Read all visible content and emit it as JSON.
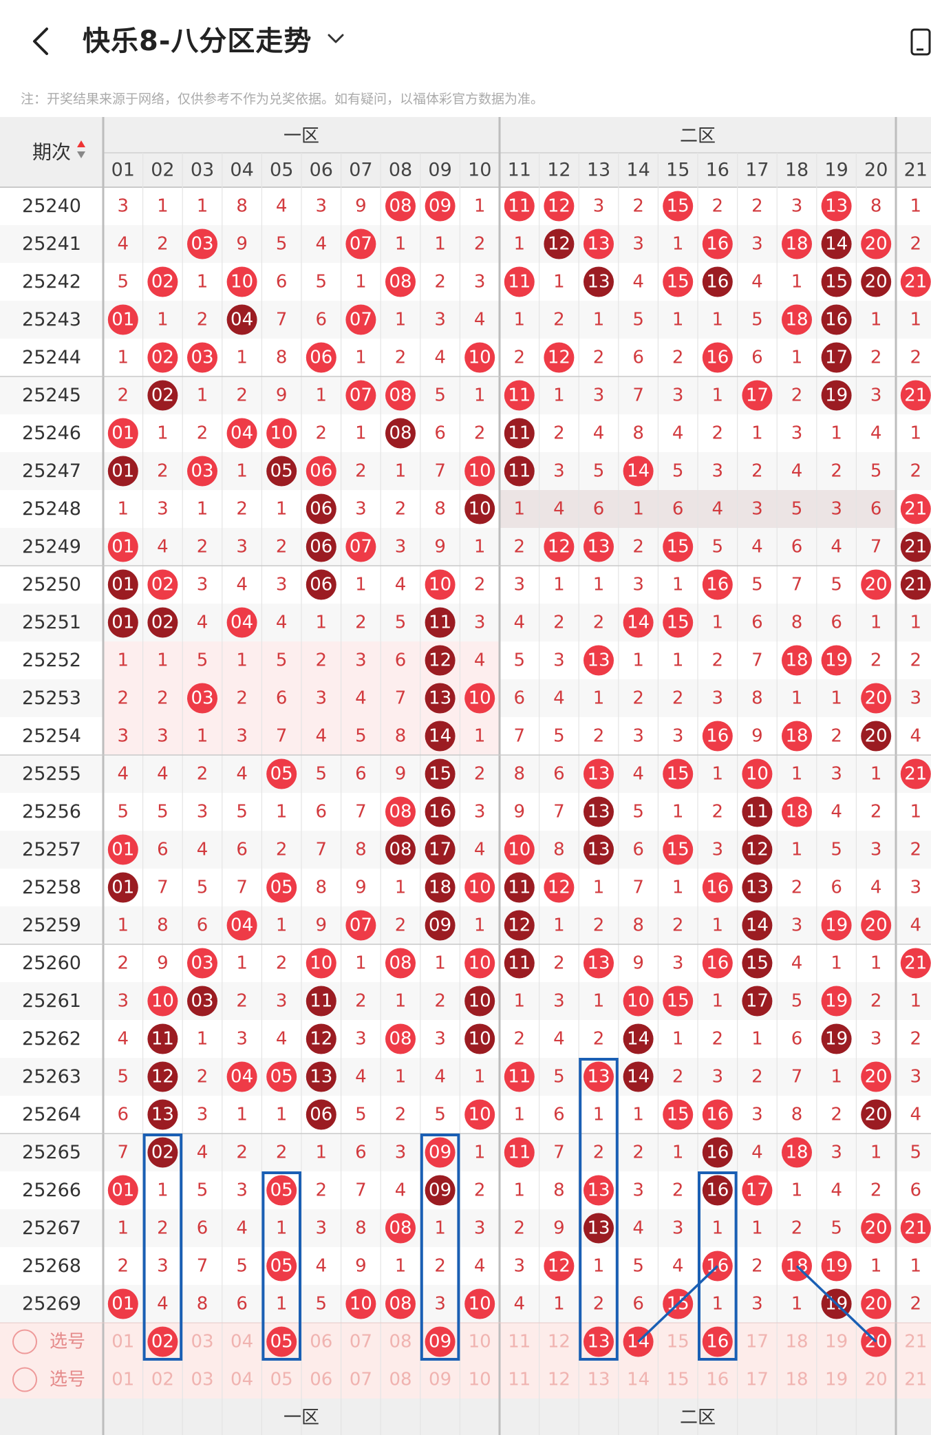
{
  "header": {
    "title": "快乐8-八分区走势",
    "back_icon": "chevron-left-icon",
    "dropdown_icon": "chevron-down-icon",
    "right_icon": "device-icon"
  },
  "notice": "注：开奖结果来源于网络，仅供参考不作为兑奖依据。如有疑问，以福体彩官方数据为准。",
  "table": {
    "period_label": "期次",
    "sort_icon": "sort-updown-icon",
    "zone1_label": "一区",
    "zone2_label": "二区",
    "columns": [
      "01",
      "02",
      "03",
      "04",
      "05",
      "06",
      "07",
      "08",
      "09",
      "10",
      "11",
      "12",
      "13",
      "14",
      "15",
      "16",
      "17",
      "18",
      "19",
      "20",
      "21"
    ],
    "rows": [
      {
        "period": "25240",
        "cells": [
          "3",
          "1",
          "1",
          "8",
          "4",
          "3",
          "9",
          "08",
          "09",
          "1",
          "11",
          "12",
          "3",
          "2",
          "15",
          "2",
          "2",
          "3",
          "13",
          "8",
          "1"
        ]
      },
      {
        "period": "25241",
        "cells": [
          "4",
          "2",
          "03",
          "9",
          "5",
          "4",
          "07",
          "1",
          "1",
          "2",
          "1",
          "12",
          "13",
          "3",
          "1",
          "16",
          "3",
          "18",
          "14",
          "20",
          "2"
        ]
      },
      {
        "period": "25242",
        "cells": [
          "5",
          "02",
          "1",
          "10",
          "6",
          "5",
          "1",
          "08",
          "2",
          "3",
          "11",
          "1",
          "13",
          "4",
          "15",
          "16",
          "4",
          "1",
          "15",
          "20",
          "21"
        ]
      },
      {
        "period": "25243",
        "cells": [
          "01",
          "1",
          "2",
          "04",
          "7",
          "6",
          "07",
          "1",
          "3",
          "4",
          "1",
          "2",
          "1",
          "5",
          "1",
          "1",
          "5",
          "18",
          "16",
          "1",
          "1"
        ]
      },
      {
        "period": "25244",
        "cells": [
          "1",
          "02",
          "03",
          "1",
          "8",
          "06",
          "1",
          "2",
          "4",
          "10",
          "2",
          "12",
          "2",
          "6",
          "2",
          "16",
          "6",
          "1",
          "17",
          "2",
          "2"
        ]
      },
      {
        "period": "25245",
        "cells": [
          "2",
          "02",
          "1",
          "2",
          "9",
          "1",
          "07",
          "08",
          "5",
          "1",
          "11",
          "1",
          "3",
          "7",
          "3",
          "1",
          "17",
          "2",
          "19",
          "3",
          "21"
        ]
      },
      {
        "period": "25246",
        "cells": [
          "01",
          "1",
          "2",
          "04",
          "10",
          "2",
          "1",
          "08",
          "6",
          "2",
          "11",
          "2",
          "4",
          "8",
          "4",
          "2",
          "1",
          "3",
          "1",
          "4",
          "1"
        ]
      },
      {
        "period": "25247",
        "cells": [
          "01",
          "2",
          "03",
          "1",
          "05",
          "06",
          "2",
          "1",
          "7",
          "10",
          "11",
          "3",
          "5",
          "14",
          "5",
          "3",
          "2",
          "4",
          "2",
          "5",
          "2"
        ]
      },
      {
        "period": "25248",
        "cells": [
          "1",
          "3",
          "1",
          "2",
          "1",
          "06",
          "3",
          "2",
          "8",
          "10",
          "1",
          "4",
          "6",
          "1",
          "6",
          "4",
          "3",
          "5",
          "3",
          "6",
          "21"
        ]
      },
      {
        "period": "25249",
        "cells": [
          "01",
          "4",
          "2",
          "3",
          "2",
          "06",
          "07",
          "3",
          "9",
          "1",
          "2",
          "12",
          "13",
          "2",
          "15",
          "5",
          "4",
          "6",
          "4",
          "7",
          "21"
        ]
      },
      {
        "period": "25250",
        "cells": [
          "01",
          "02",
          "3",
          "4",
          "3",
          "06",
          "1",
          "4",
          "10",
          "2",
          "3",
          "1",
          "1",
          "3",
          "1",
          "16",
          "5",
          "7",
          "5",
          "20",
          "21"
        ]
      },
      {
        "period": "25251",
        "cells": [
          "01",
          "02",
          "4",
          "04",
          "4",
          "1",
          "2",
          "5",
          "11",
          "3",
          "4",
          "2",
          "2",
          "14",
          "15",
          "1",
          "6",
          "8",
          "6",
          "1",
          "1"
        ]
      },
      {
        "period": "25252",
        "cells": [
          "1",
          "1",
          "5",
          "1",
          "5",
          "2",
          "3",
          "6",
          "12",
          "4",
          "5",
          "3",
          "13",
          "1",
          "1",
          "2",
          "7",
          "18",
          "19",
          "2",
          "2"
        ]
      },
      {
        "period": "25253",
        "cells": [
          "2",
          "2",
          "03",
          "2",
          "6",
          "3",
          "4",
          "7",
          "13",
          "10",
          "6",
          "4",
          "1",
          "2",
          "2",
          "3",
          "8",
          "1",
          "1",
          "20",
          "3"
        ]
      },
      {
        "period": "25254",
        "cells": [
          "3",
          "3",
          "1",
          "3",
          "7",
          "4",
          "5",
          "8",
          "14",
          "1",
          "7",
          "5",
          "2",
          "3",
          "3",
          "16",
          "9",
          "18",
          "2",
          "20",
          "4"
        ]
      },
      {
        "period": "25255",
        "cells": [
          "4",
          "4",
          "2",
          "4",
          "05",
          "5",
          "6",
          "9",
          "15",
          "2",
          "8",
          "6",
          "13",
          "4",
          "15",
          "1",
          "10",
          "1",
          "3",
          "1",
          "21"
        ]
      },
      {
        "period": "25256",
        "cells": [
          "5",
          "5",
          "3",
          "5",
          "1",
          "6",
          "7",
          "08",
          "16",
          "3",
          "9",
          "7",
          "13",
          "5",
          "1",
          "2",
          "11",
          "18",
          "4",
          "2",
          "1"
        ]
      },
      {
        "period": "25257",
        "cells": [
          "01",
          "6",
          "4",
          "6",
          "2",
          "7",
          "8",
          "08",
          "17",
          "4",
          "10",
          "8",
          "13",
          "6",
          "15",
          "3",
          "12",
          "1",
          "5",
          "3",
          "2"
        ]
      },
      {
        "period": "25258",
        "cells": [
          "01",
          "7",
          "5",
          "7",
          "05",
          "8",
          "9",
          "1",
          "18",
          "10",
          "11",
          "12",
          "1",
          "7",
          "1",
          "16",
          "13",
          "2",
          "6",
          "4",
          "3"
        ]
      },
      {
        "period": "25259",
        "cells": [
          "1",
          "8",
          "6",
          "04",
          "1",
          "9",
          "07",
          "2",
          "09",
          "1",
          "12",
          "1",
          "2",
          "8",
          "2",
          "1",
          "14",
          "3",
          "19",
          "20",
          "4"
        ]
      },
      {
        "period": "25260",
        "cells": [
          "2",
          "9",
          "03",
          "1",
          "2",
          "10",
          "1",
          "08",
          "1",
          "10",
          "11",
          "2",
          "13",
          "9",
          "3",
          "16",
          "15",
          "4",
          "1",
          "1",
          "21"
        ]
      },
      {
        "period": "25261",
        "cells": [
          "3",
          "10",
          "03",
          "2",
          "3",
          "11",
          "2",
          "1",
          "2",
          "10",
          "1",
          "3",
          "1",
          "10",
          "15",
          "1",
          "17",
          "5",
          "19",
          "2",
          "1"
        ]
      },
      {
        "period": "25262",
        "cells": [
          "4",
          "11",
          "1",
          "3",
          "4",
          "12",
          "3",
          "08",
          "3",
          "10",
          "2",
          "4",
          "2",
          "14",
          "1",
          "2",
          "1",
          "6",
          "19",
          "3",
          "2"
        ]
      },
      {
        "period": "25263",
        "cells": [
          "5",
          "12",
          "2",
          "04",
          "05",
          "13",
          "4",
          "1",
          "4",
          "1",
          "11",
          "5",
          "13",
          "14",
          "2",
          "3",
          "2",
          "7",
          "1",
          "20",
          "3"
        ]
      },
      {
        "period": "25264",
        "cells": [
          "6",
          "13",
          "3",
          "1",
          "1",
          "06",
          "5",
          "2",
          "5",
          "10",
          "1",
          "6",
          "1",
          "1",
          "15",
          "16",
          "3",
          "8",
          "2",
          "20",
          "4"
        ]
      },
      {
        "period": "25265",
        "cells": [
          "7",
          "02",
          "4",
          "2",
          "2",
          "1",
          "6",
          "3",
          "09",
          "1",
          "11",
          "7",
          "2",
          "2",
          "1",
          "16",
          "4",
          "18",
          "3",
          "1",
          "5"
        ]
      },
      {
        "period": "25266",
        "cells": [
          "01",
          "1",
          "5",
          "3",
          "05",
          "2",
          "7",
          "4",
          "09",
          "2",
          "1",
          "8",
          "13",
          "3",
          "2",
          "16",
          "17",
          "1",
          "4",
          "2",
          "6"
        ]
      },
      {
        "period": "25267",
        "cells": [
          "1",
          "2",
          "6",
          "4",
          "1",
          "3",
          "8",
          "08",
          "1",
          "3",
          "2",
          "9",
          "13",
          "4",
          "3",
          "1",
          "1",
          "2",
          "5",
          "20",
          "21"
        ]
      },
      {
        "period": "25268",
        "cells": [
          "2",
          "3",
          "7",
          "5",
          "05",
          "4",
          "9",
          "1",
          "2",
          "4",
          "3",
          "12",
          "1",
          "5",
          "4",
          "16",
          "2",
          "18",
          "19",
          "1",
          "1"
        ]
      },
      {
        "period": "25269",
        "cells": [
          "01",
          "4",
          "8",
          "6",
          "1",
          "5",
          "10",
          "08",
          "3",
          "10",
          "4",
          "1",
          "2",
          "6",
          "15",
          "1",
          "3",
          "1",
          "19",
          "20",
          "2"
        ]
      }
    ],
    "pick_rows": [
      {
        "label": "选号",
        "selected": [
          "02",
          "05",
          "09",
          "13",
          "14",
          "16",
          "20"
        ]
      },
      {
        "label": "选号",
        "selected": []
      }
    ],
    "colors": {
      "ball": "#ee3b47",
      "ball_dark": "#9b1c22",
      "miss_text": "#d23a3e",
      "header_bg": "#efefef",
      "pick_bg": "#fdecea",
      "highlight_box": "#1a5fb4"
    }
  }
}
